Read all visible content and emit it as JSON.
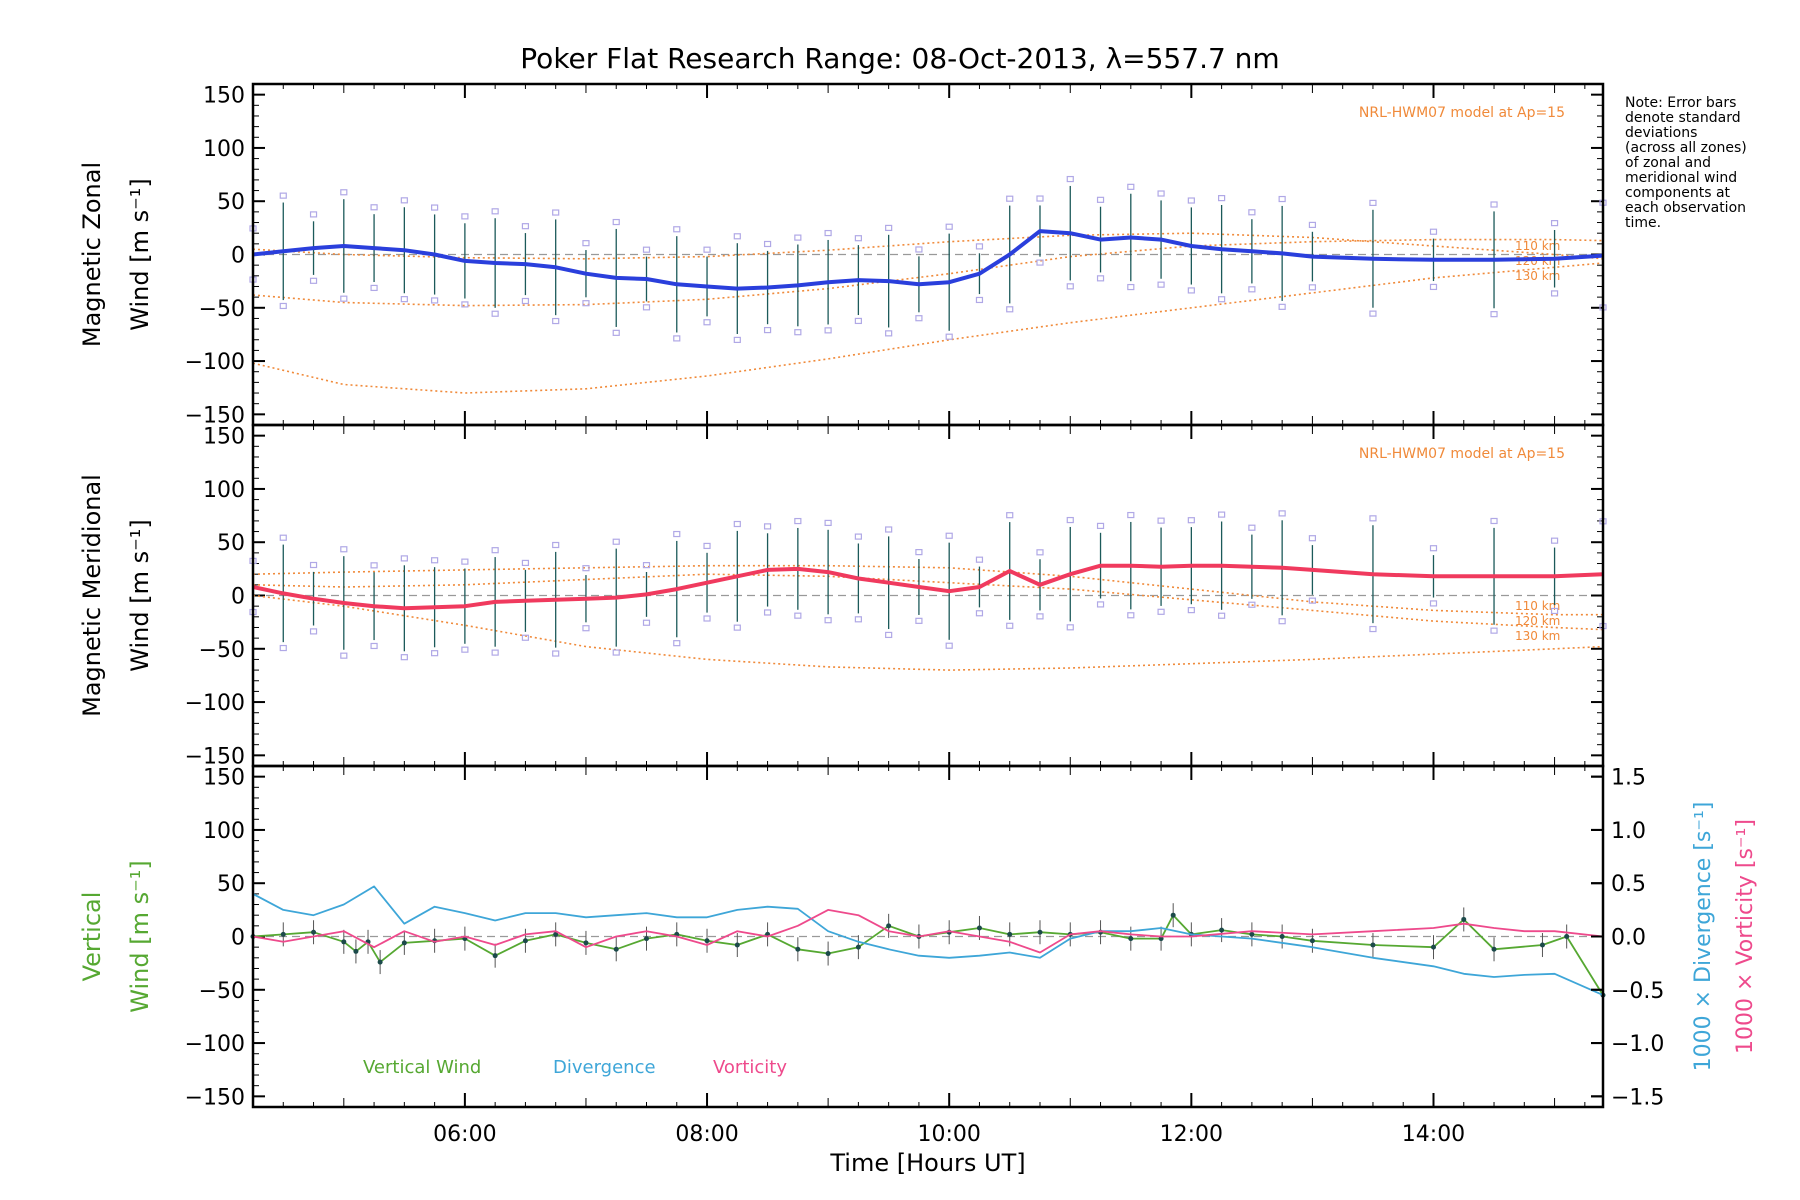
{
  "title": "Poker Flat Research Range: 08-Oct-2013, λ=557.7 nm",
  "note": [
    "Note: Error bars",
    "denote standard",
    "deviations",
    "(across all zones)",
    "of zonal and",
    "meridional wind",
    "components at",
    "each observation",
    "time."
  ],
  "chart_data": [
    {
      "type": "line",
      "panel": "zonal",
      "ylabel": [
        "Magnetic Zonal",
        "Wind [m s⁻¹]"
      ],
      "ylim": [
        -160,
        160
      ],
      "yticks": [
        150,
        100,
        50,
        0,
        -50,
        -100,
        -150
      ],
      "xlim": [
        4.25,
        15.4
      ],
      "model_label": "NRL-HWM07 model at Ap=15",
      "altitude_labels": [
        "110 km",
        "120 km",
        "130 km"
      ],
      "series": [
        {
          "name": "zonal wind",
          "color": "#2a3fdc",
          "x": [
            4.25,
            4.5,
            4.75,
            5.0,
            5.25,
            5.5,
            5.75,
            6.0,
            6.25,
            6.5,
            6.75,
            7.0,
            7.25,
            7.5,
            7.75,
            8.0,
            8.25,
            8.5,
            8.75,
            9.0,
            9.25,
            9.5,
            9.75,
            10.0,
            10.25,
            10.5,
            10.75,
            11.0,
            11.25,
            11.5,
            11.75,
            12.0,
            12.25,
            12.5,
            12.75,
            13.0,
            13.5,
            14.0,
            14.5,
            15.0,
            15.4
          ],
          "y": [
            0,
            3,
            6,
            8,
            6,
            4,
            0,
            -6,
            -8,
            -9,
            -12,
            -18,
            -22,
            -23,
            -28,
            -30,
            -32,
            -31,
            -29,
            -26,
            -24,
            -25,
            -28,
            -26,
            -18,
            0,
            22,
            20,
            14,
            16,
            14,
            8,
            5,
            3,
            1,
            -2,
            -4,
            -5,
            -5,
            -4,
            -1
          ]
        }
      ],
      "model": [
        {
          "name": "110 km",
          "x": [
            4.25,
            5,
            6,
            7,
            8,
            9,
            10,
            11,
            12,
            13,
            14,
            15,
            15.4
          ],
          "y": [
            5,
            0,
            -3,
            -4,
            -2,
            4,
            12,
            18,
            20,
            16,
            8,
            0,
            -4
          ]
        },
        {
          "name": "120 km",
          "x": [
            4.25,
            5,
            6,
            7,
            8,
            9,
            10,
            11,
            12,
            13,
            14,
            15,
            15.4
          ],
          "y": [
            -38,
            -45,
            -48,
            -47,
            -42,
            -32,
            -18,
            -2,
            8,
            12,
            14,
            14,
            13
          ]
        },
        {
          "name": "130 km",
          "x": [
            4.25,
            5,
            6,
            7,
            8,
            9,
            10,
            11,
            12,
            13,
            14,
            15,
            15.4
          ],
          "y": [
            -102,
            -122,
            -130,
            -126,
            -114,
            -98,
            -80,
            -64,
            -50,
            -36,
            -22,
            -12,
            -8
          ]
        }
      ]
    },
    {
      "type": "line",
      "panel": "meridional",
      "ylabel": [
        "Magnetic Meridional",
        "Wind [m s⁻¹]"
      ],
      "ylim": [
        -160,
        160
      ],
      "yticks": [
        150,
        100,
        50,
        0,
        -50,
        -100,
        -150
      ],
      "xlim": [
        4.25,
        15.4
      ],
      "model_label": "NRL-HWM07 model at Ap=15",
      "altitude_labels": [
        "110 km",
        "120 km",
        "130 km"
      ],
      "series": [
        {
          "name": "meridional wind",
          "color": "#f03a5e",
          "x": [
            4.25,
            4.5,
            4.75,
            5.0,
            5.25,
            5.5,
            5.75,
            6.0,
            6.25,
            6.5,
            6.75,
            7.0,
            7.25,
            7.5,
            7.75,
            8.0,
            8.25,
            8.5,
            8.75,
            9.0,
            9.25,
            9.5,
            9.75,
            10.0,
            10.25,
            10.5,
            10.75,
            11.0,
            11.25,
            11.5,
            11.75,
            12.0,
            12.25,
            12.5,
            12.75,
            13.0,
            13.5,
            14.0,
            14.5,
            15.0,
            15.4
          ],
          "y": [
            8,
            2,
            -3,
            -7,
            -10,
            -12,
            -11,
            -10,
            -6,
            -5,
            -4,
            -3,
            -2,
            1,
            6,
            12,
            18,
            24,
            25,
            22,
            16,
            12,
            8,
            4,
            8,
            23,
            10,
            20,
            28,
            28,
            27,
            28,
            28,
            27,
            26,
            24,
            20,
            18,
            18,
            18,
            20
          ]
        }
      ],
      "model": [
        {
          "name": "110 km",
          "x": [
            4.25,
            5,
            6,
            7,
            8,
            9,
            10,
            11,
            12,
            13,
            14,
            15,
            15.4
          ],
          "y": [
            20,
            22,
            24,
            26,
            28,
            28,
            26,
            18,
            6,
            -6,
            -14,
            -18,
            -18
          ]
        },
        {
          "name": "120 km",
          "x": [
            4.25,
            5,
            6,
            7,
            8,
            9,
            10,
            11,
            12,
            13,
            14,
            15,
            15.4
          ],
          "y": [
            10,
            8,
            10,
            15,
            20,
            18,
            12,
            6,
            -4,
            -14,
            -24,
            -30,
            -32
          ]
        },
        {
          "name": "130 km",
          "x": [
            4.25,
            5,
            6,
            7,
            8,
            9,
            10,
            11,
            12,
            13,
            14,
            15,
            15.4
          ],
          "y": [
            0,
            -10,
            -28,
            -48,
            -60,
            -67,
            -70,
            -68,
            -64,
            -60,
            -55,
            -50,
            -48
          ]
        }
      ]
    },
    {
      "type": "line",
      "panel": "vertical",
      "ylabel": [
        "Vertical",
        "Wind [m s⁻¹]"
      ],
      "ylabel_right_1": "1000 × Divergence [s⁻¹]",
      "ylabel_right_2": "1000 × Vorticity [s⁻¹]",
      "ylim": [
        -160,
        160
      ],
      "yticks": [
        150,
        100,
        50,
        0,
        -50,
        -100,
        -150
      ],
      "ylim_right": [
        -1.6,
        1.6
      ],
      "yticks_right": [
        1.5,
        1.0,
        0.5,
        0.0,
        -0.5,
        -1.0,
        -1.5
      ],
      "yticklabels_right": [
        "1.5",
        "1.0",
        "0.5",
        "0.0",
        "−0.5",
        "−1.0",
        "−1.5"
      ],
      "xlim": [
        4.25,
        15.4
      ],
      "xticks": [
        6,
        8,
        10,
        12,
        14
      ],
      "xticklabels": [
        "06:00",
        "08:00",
        "10:00",
        "12:00",
        "14:00"
      ],
      "xlabel": "Time [Hours UT]",
      "legend": [
        "Vertical Wind",
        "Divergence",
        "Vorticity"
      ],
      "series": [
        {
          "name": "Vertical Wind",
          "color": "#56a832",
          "x": [
            4.25,
            4.5,
            4.75,
            5.0,
            5.1,
            5.2,
            5.3,
            5.5,
            5.75,
            6.0,
            6.25,
            6.5,
            6.75,
            7.0,
            7.25,
            7.5,
            7.75,
            8.0,
            8.25,
            8.5,
            8.75,
            9.0,
            9.25,
            9.5,
            9.75,
            10.0,
            10.25,
            10.5,
            10.75,
            11.0,
            11.25,
            11.5,
            11.75,
            11.85,
            12.0,
            12.25,
            12.5,
            12.75,
            13.0,
            13.5,
            14.0,
            14.25,
            14.5,
            14.9,
            15.1,
            15.4
          ],
          "y": [
            0,
            2,
            4,
            -5,
            -14,
            -5,
            -24,
            -6,
            -4,
            -2,
            -18,
            -4,
            2,
            -6,
            -12,
            -2,
            2,
            -4,
            -8,
            2,
            -12,
            -16,
            -10,
            10,
            0,
            4,
            8,
            2,
            4,
            2,
            4,
            -2,
            -2,
            20,
            2,
            6,
            2,
            0,
            -4,
            -8,
            -10,
            16,
            -12,
            -8,
            0,
            -55
          ]
        },
        {
          "name": "Divergence",
          "color": "#3ea6d8",
          "x": [
            4.25,
            4.5,
            4.75,
            5.0,
            5.25,
            5.5,
            5.75,
            6.0,
            6.25,
            6.5,
            6.75,
            7.0,
            7.25,
            7.5,
            7.75,
            8.0,
            8.25,
            8.5,
            8.75,
            9.0,
            9.25,
            9.5,
            9.75,
            10.0,
            10.25,
            10.5,
            10.75,
            11.0,
            11.25,
            11.5,
            11.75,
            12.0,
            12.5,
            13.0,
            13.5,
            14.0,
            14.25,
            14.5,
            14.75,
            15.0,
            15.4
          ],
          "y": [
            0.4,
            0.25,
            0.2,
            0.3,
            0.47,
            0.12,
            0.28,
            0.22,
            0.15,
            0.22,
            0.22,
            0.18,
            0.2,
            0.22,
            0.18,
            0.18,
            0.25,
            0.28,
            0.26,
            0.05,
            -0.05,
            -0.12,
            -0.18,
            -0.2,
            -0.18,
            -0.15,
            -0.2,
            -0.02,
            0.05,
            0.05,
            0.08,
            0.02,
            -0.02,
            -0.1,
            -0.2,
            -0.28,
            -0.35,
            -0.38,
            -0.36,
            -0.35,
            -0.55
          ]
        },
        {
          "name": "Vorticity",
          "color": "#ee4a8c",
          "x": [
            4.25,
            4.5,
            4.75,
            5.0,
            5.25,
            5.5,
            5.75,
            6.0,
            6.25,
            6.5,
            6.75,
            7.0,
            7.25,
            7.5,
            7.75,
            8.0,
            8.25,
            8.5,
            8.75,
            9.0,
            9.25,
            9.5,
            9.75,
            10.0,
            10.25,
            10.5,
            10.75,
            11.0,
            11.25,
            11.5,
            11.75,
            12.0,
            12.5,
            13.0,
            13.5,
            14.0,
            14.25,
            14.5,
            14.75,
            15.0,
            15.4
          ],
          "y": [
            0.0,
            -0.05,
            0.0,
            0.05,
            -0.1,
            0.05,
            -0.05,
            0.0,
            -0.08,
            0.02,
            0.05,
            -0.1,
            0.0,
            0.05,
            0.0,
            -0.08,
            0.05,
            0.0,
            0.1,
            0.25,
            0.2,
            0.05,
            0.0,
            0.05,
            0.0,
            -0.05,
            -0.15,
            0.02,
            0.05,
            0.02,
            0.0,
            0.0,
            0.05,
            0.02,
            0.05,
            0.08,
            0.12,
            0.08,
            0.05,
            0.05,
            0.0
          ]
        }
      ]
    }
  ]
}
